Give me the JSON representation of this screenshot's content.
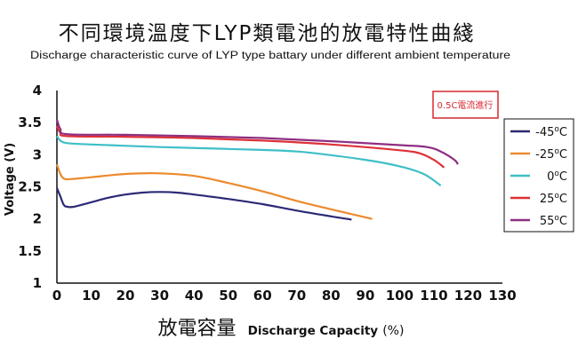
{
  "chart_data": {
    "type": "line",
    "title": "不同環境溫度下LYP類電池的放電特性曲綫",
    "subtitle": "Discharge characteristic curve of LYP type battary under different ambient temperature",
    "xlabel_cn": "放電容量",
    "xlabel_en": "Discharge Capacity",
    "xlabel_unit": "(%)",
    "ylabel": "Voltage (V)",
    "xlim": [
      0,
      130
    ],
    "ylim": [
      1,
      4
    ],
    "x_ticks": [
      "0",
      "10",
      "20",
      "30",
      "40",
      "50",
      "60",
      "70",
      "80",
      "90",
      "100",
      "110",
      "120",
      "130"
    ],
    "y_ticks": [
      "1",
      "1.5",
      "2",
      "2.5",
      "3",
      "3.5",
      "4"
    ],
    "grid": false,
    "legend_position": "right",
    "annotation": "0.5C電流進行",
    "series": [
      {
        "name": "-45",
        "color": "#2b2a76",
        "points": [
          [
            0,
            2.48
          ],
          [
            1,
            2.35
          ],
          [
            2,
            2.22
          ],
          [
            3,
            2.19
          ],
          [
            5,
            2.19
          ],
          [
            10,
            2.26
          ],
          [
            15,
            2.33
          ],
          [
            20,
            2.38
          ],
          [
            25,
            2.41
          ],
          [
            30,
            2.42
          ],
          [
            35,
            2.41
          ],
          [
            40,
            2.38
          ],
          [
            50,
            2.31
          ],
          [
            60,
            2.23
          ],
          [
            70,
            2.13
          ],
          [
            80,
            2.04
          ],
          [
            86,
            1.99
          ]
        ]
      },
      {
        "name": "-25",
        "color": "#ec8a2d",
        "points": [
          [
            0,
            2.85
          ],
          [
            1,
            2.7
          ],
          [
            2,
            2.63
          ],
          [
            4,
            2.62
          ],
          [
            10,
            2.65
          ],
          [
            20,
            2.7
          ],
          [
            30,
            2.71
          ],
          [
            40,
            2.67
          ],
          [
            50,
            2.56
          ],
          [
            60,
            2.43
          ],
          [
            70,
            2.28
          ],
          [
            80,
            2.15
          ],
          [
            88,
            2.05
          ],
          [
            92,
            2.0
          ]
        ]
      },
      {
        "name": "0",
        "color": "#3fbfc7",
        "points": [
          [
            0,
            3.29
          ],
          [
            1,
            3.22
          ],
          [
            3,
            3.18
          ],
          [
            10,
            3.16
          ],
          [
            30,
            3.12
          ],
          [
            50,
            3.09
          ],
          [
            70,
            3.05
          ],
          [
            90,
            2.92
          ],
          [
            100,
            2.82
          ],
          [
            107,
            2.7
          ],
          [
            112,
            2.52
          ]
        ]
      },
      {
        "name": "25",
        "color": "#dd3137",
        "points": [
          [
            0,
            3.45
          ],
          [
            1,
            3.34
          ],
          [
            3,
            3.29
          ],
          [
            20,
            3.28
          ],
          [
            40,
            3.26
          ],
          [
            60,
            3.22
          ],
          [
            80,
            3.16
          ],
          [
            100,
            3.07
          ],
          [
            106,
            3.02
          ],
          [
            110,
            2.92
          ],
          [
            113,
            2.8
          ]
        ]
      },
      {
        "name": "55",
        "color": "#8e2f82",
        "points": [
          [
            0,
            3.55
          ],
          [
            1,
            3.4
          ],
          [
            3,
            3.32
          ],
          [
            20,
            3.31
          ],
          [
            40,
            3.29
          ],
          [
            60,
            3.26
          ],
          [
            80,
            3.21
          ],
          [
            100,
            3.15
          ],
          [
            108,
            3.12
          ],
          [
            112,
            3.05
          ],
          [
            116,
            2.92
          ],
          [
            117,
            2.85
          ]
        ]
      }
    ]
  }
}
